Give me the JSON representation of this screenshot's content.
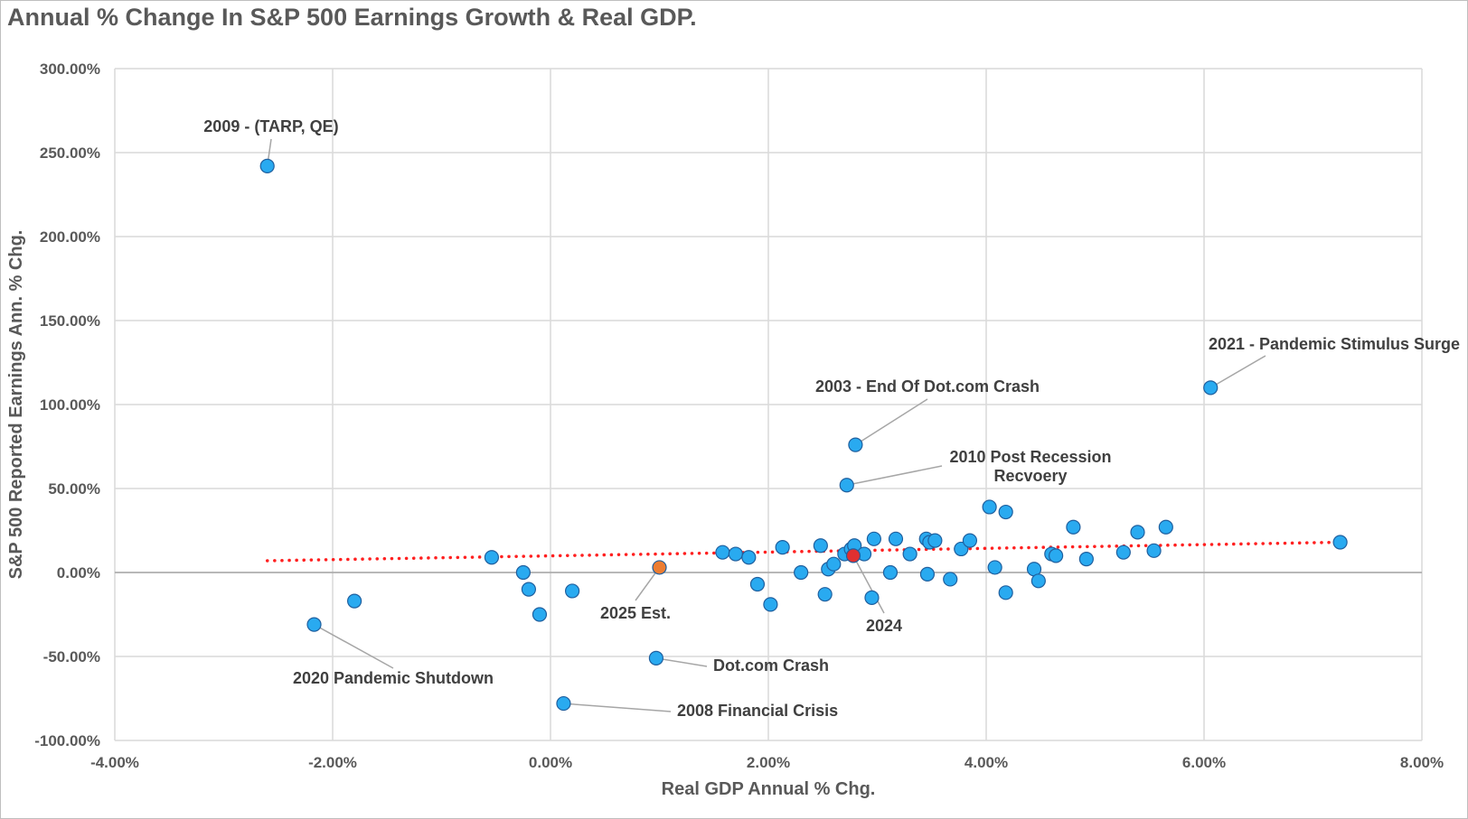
{
  "chart_data": {
    "type": "scatter",
    "title": "Annual % Change In S&P 500 Earnings Growth & Real GDP.",
    "xlabel": "Real GDP Annual % Chg.",
    "ylabel": "S&P 500 Reported Earnings Ann. % Chg.",
    "xlim": [
      -4,
      8
    ],
    "ylim": [
      -100,
      300
    ],
    "x_ticks": [
      -4,
      -2,
      0,
      2,
      4,
      6,
      8
    ],
    "y_ticks": [
      -100,
      -50,
      0,
      50,
      100,
      150,
      200,
      250,
      300
    ],
    "x_tick_labels": [
      "-4.00%",
      "-2.00%",
      "0.00%",
      "2.00%",
      "4.00%",
      "6.00%",
      "8.00%"
    ],
    "y_tick_labels": [
      "-100.00%",
      "-50.00%",
      "0.00%",
      "50.00%",
      "100.00%",
      "150.00%",
      "200.00%",
      "250.00%",
      "300.00%"
    ],
    "grid": true,
    "colors": {
      "point": "#29aaf0",
      "point_edge": "#1f5f9e",
      "estimate": "#ed7d31",
      "current": "#e03030",
      "trend": "#ff2020",
      "grid": "#d9d9d9"
    },
    "trendline": {
      "style": "dotted",
      "color": "#ff2020",
      "x": [
        -2.6,
        7.25
      ],
      "y": [
        7,
        18
      ]
    },
    "series": [
      {
        "points": [
          [
            -2.6,
            242
          ],
          [
            -2.17,
            -31
          ],
          [
            -1.8,
            -17
          ],
          [
            -0.54,
            9
          ],
          [
            -0.25,
            0
          ],
          [
            -0.2,
            -10
          ],
          [
            -0.1,
            -25
          ],
          [
            0.2,
            -11
          ],
          [
            0.12,
            -78
          ],
          [
            0.97,
            -51
          ],
          [
            1.58,
            12
          ],
          [
            1.7,
            11
          ],
          [
            1.82,
            9
          ],
          [
            1.9,
            -7
          ],
          [
            2.02,
            -19
          ],
          [
            2.13,
            15
          ],
          [
            2.3,
            0
          ],
          [
            2.48,
            16
          ],
          [
            2.52,
            -13
          ],
          [
            2.55,
            2
          ],
          [
            2.6,
            5
          ],
          [
            2.7,
            11
          ],
          [
            2.72,
            52
          ],
          [
            2.76,
            14
          ],
          [
            2.79,
            16
          ],
          [
            2.8,
            76
          ],
          [
            2.88,
            11
          ],
          [
            2.95,
            -15
          ],
          [
            2.97,
            20
          ],
          [
            3.12,
            0
          ],
          [
            3.17,
            20
          ],
          [
            3.3,
            11
          ],
          [
            3.45,
            20
          ],
          [
            3.46,
            -1
          ],
          [
            3.48,
            18
          ],
          [
            3.53,
            19
          ],
          [
            3.67,
            -4
          ],
          [
            3.77,
            14
          ],
          [
            3.85,
            19
          ],
          [
            4.03,
            39
          ],
          [
            4.08,
            3
          ],
          [
            4.18,
            36
          ],
          [
            4.18,
            -12
          ],
          [
            4.44,
            2
          ],
          [
            4.48,
            -5
          ],
          [
            4.6,
            11
          ],
          [
            4.64,
            10
          ],
          [
            4.8,
            27
          ],
          [
            4.92,
            8
          ],
          [
            5.26,
            12
          ],
          [
            5.39,
            24
          ],
          [
            5.54,
            13
          ],
          [
            5.65,
            27
          ],
          [
            6.06,
            110
          ],
          [
            7.25,
            18
          ]
        ]
      },
      {
        "points": [
          [
            1.0,
            3
          ]
        ]
      },
      {
        "points": [
          [
            2.78,
            10
          ]
        ]
      }
    ],
    "annotations": [
      {
        "text": "2009 - (TARP, QE)",
        "point": [
          -2.6,
          242
        ]
      },
      {
        "text": "2021 - Pandemic Stimulus Surge",
        "point": [
          6.06,
          110
        ]
      },
      {
        "text": "2003 - End Of Dot.com Crash",
        "point": [
          2.8,
          76
        ]
      },
      {
        "lines": [
          "2010 Post Recession",
          "Recvoery"
        ],
        "point": [
          2.72,
          52
        ]
      },
      {
        "text": "2025 Est.",
        "point": [
          1.0,
          3
        ]
      },
      {
        "text": "2024",
        "point": [
          2.78,
          10
        ]
      },
      {
        "text": "2020 Pandemic Shutdown",
        "point": [
          -2.17,
          -31
        ]
      },
      {
        "text": "Dot.com Crash",
        "point": [
          0.97,
          -51
        ]
      },
      {
        "text": "2008 Financial Crisis",
        "point": [
          0.12,
          -78
        ]
      }
    ]
  }
}
